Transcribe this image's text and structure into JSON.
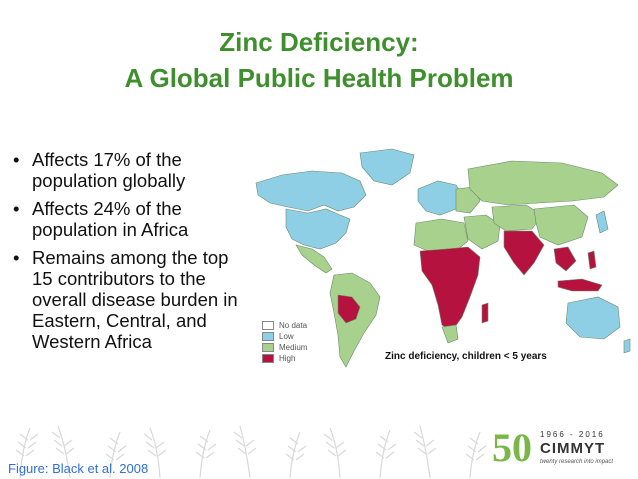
{
  "slide": {
    "title_line1": "Zinc Deficiency:",
    "title_line2": "A Global Public Health Problem",
    "bullets": [
      "Affects 17% of the population globally",
      "Affects 24% of the population in Africa",
      "Remains among the top 15 contributors to the overall disease burden in Eastern, Central, and Western Africa"
    ],
    "bullet_symbol": "•"
  },
  "map": {
    "caption": "Zinc deficiency, children < 5 years",
    "legend": [
      {
        "label": "No data",
        "color": "#ffffff"
      },
      {
        "label": "Low",
        "color": "#8ecfe6"
      },
      {
        "label": "Medium",
        "color": "#a9d18e"
      },
      {
        "label": "High",
        "color": "#b5123f"
      }
    ],
    "colors": {
      "no_data": "#ffffff",
      "low": "#8ecfe6",
      "medium": "#a9d18e",
      "high": "#b5123f"
    }
  },
  "footer": {
    "credit": "Figure:  Black et al. 2008",
    "logo_number": "50",
    "logo_years": "1966 - 2016",
    "logo_brand": "CIMMYT",
    "logo_tagline": "twenty research into impact"
  },
  "colors": {
    "title": "#3f8f2e",
    "credit": "#2f6fd6",
    "logo_accent": "#7ab648"
  }
}
